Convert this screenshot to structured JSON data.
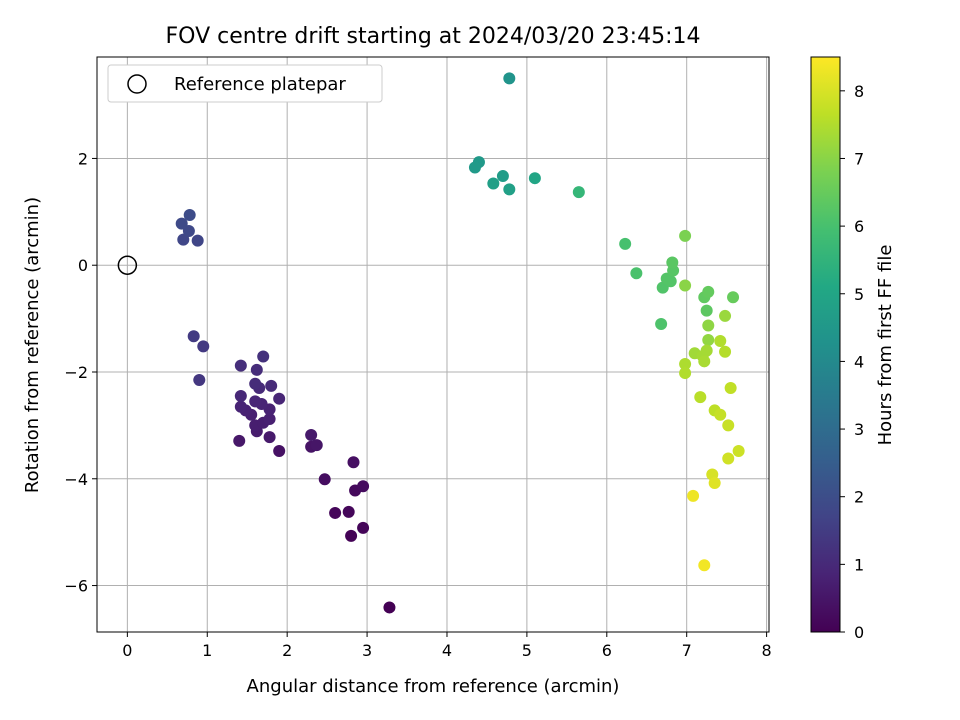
{
  "chart_data": {
    "type": "scatter",
    "title": "FOV centre drift starting at 2024/03/20 23:45:14",
    "xlabel": "Angular distance from reference (arcmin)",
    "ylabel": "Rotation from reference (arcmin)",
    "xlim": [
      -0.38,
      8.03
    ],
    "ylim": [
      -6.87,
      3.9
    ],
    "xticks": [
      0,
      1,
      2,
      3,
      4,
      5,
      6,
      7,
      8
    ],
    "yticks": [
      -6,
      -4,
      -2,
      0,
      2
    ],
    "xtick_labels": [
      "0",
      "1",
      "2",
      "3",
      "4",
      "5",
      "6",
      "7",
      "8"
    ],
    "ytick_labels": [
      "−6",
      "−4",
      "−2",
      "0",
      "2"
    ],
    "grid": true,
    "legend": {
      "position": "top-left",
      "entries": [
        "Reference platepar"
      ]
    },
    "reference_point": {
      "x": 0,
      "y": 0
    },
    "colorbar": {
      "label": "Hours from first FF file",
      "range": [
        0,
        8.5
      ],
      "ticks": [
        0,
        1,
        2,
        3,
        4,
        5,
        6,
        7,
        8
      ],
      "tick_labels": [
        "0",
        "1",
        "2",
        "3",
        "4",
        "5",
        "6",
        "7",
        "8"
      ],
      "colormap": "viridis"
    },
    "points": [
      {
        "x": 3.28,
        "y": -6.41,
        "c": 0.0
      },
      {
        "x": 2.8,
        "y": -5.07,
        "c": 0.05
      },
      {
        "x": 2.95,
        "y": -4.92,
        "c": 0.1
      },
      {
        "x": 2.6,
        "y": -4.64,
        "c": 0.12
      },
      {
        "x": 2.77,
        "y": -4.62,
        "c": 0.15
      },
      {
        "x": 2.85,
        "y": -4.22,
        "c": 0.2
      },
      {
        "x": 2.95,
        "y": -4.14,
        "c": 0.25
      },
      {
        "x": 2.47,
        "y": -4.01,
        "c": 0.3
      },
      {
        "x": 2.83,
        "y": -3.69,
        "c": 0.35
      },
      {
        "x": 1.9,
        "y": -3.48,
        "c": 0.4
      },
      {
        "x": 2.3,
        "y": -3.4,
        "c": 0.45
      },
      {
        "x": 2.37,
        "y": -3.37,
        "c": 0.5
      },
      {
        "x": 1.4,
        "y": -3.29,
        "c": 0.55
      },
      {
        "x": 1.78,
        "y": -3.22,
        "c": 0.6
      },
      {
        "x": 2.3,
        "y": -3.18,
        "c": 0.6
      },
      {
        "x": 1.62,
        "y": -3.11,
        "c": 0.65
      },
      {
        "x": 1.6,
        "y": -3.0,
        "c": 0.7
      },
      {
        "x": 1.7,
        "y": -2.95,
        "c": 0.7
      },
      {
        "x": 1.78,
        "y": -2.88,
        "c": 0.75
      },
      {
        "x": 1.55,
        "y": -2.8,
        "c": 0.75
      },
      {
        "x": 1.48,
        "y": -2.72,
        "c": 0.8
      },
      {
        "x": 1.78,
        "y": -2.7,
        "c": 0.8
      },
      {
        "x": 1.42,
        "y": -2.65,
        "c": 0.85
      },
      {
        "x": 1.68,
        "y": -2.6,
        "c": 0.85
      },
      {
        "x": 1.6,
        "y": -2.55,
        "c": 0.9
      },
      {
        "x": 1.9,
        "y": -2.5,
        "c": 0.9
      },
      {
        "x": 1.42,
        "y": -2.45,
        "c": 0.95
      },
      {
        "x": 1.65,
        "y": -2.3,
        "c": 1.0
      },
      {
        "x": 1.8,
        "y": -2.26,
        "c": 1.0
      },
      {
        "x": 1.6,
        "y": -2.22,
        "c": 1.05
      },
      {
        "x": 1.62,
        "y": -1.96,
        "c": 1.1
      },
      {
        "x": 1.42,
        "y": -1.88,
        "c": 1.15
      },
      {
        "x": 1.7,
        "y": -1.71,
        "c": 1.2
      },
      {
        "x": 0.9,
        "y": -2.15,
        "c": 1.35
      },
      {
        "x": 0.95,
        "y": -1.52,
        "c": 1.4
      },
      {
        "x": 0.83,
        "y": -1.33,
        "c": 1.45
      },
      {
        "x": 0.88,
        "y": 0.46,
        "c": 1.75
      },
      {
        "x": 0.7,
        "y": 0.48,
        "c": 1.8
      },
      {
        "x": 0.77,
        "y": 0.64,
        "c": 1.85
      },
      {
        "x": 0.68,
        "y": 0.78,
        "c": 1.9
      },
      {
        "x": 0.78,
        "y": 0.94,
        "c": 1.95
      },
      {
        "x": 4.78,
        "y": 3.5,
        "c": 4.35
      },
      {
        "x": 4.4,
        "y": 1.93,
        "c": 4.55
      },
      {
        "x": 4.35,
        "y": 1.83,
        "c": 4.6
      },
      {
        "x": 4.7,
        "y": 1.67,
        "c": 4.65
      },
      {
        "x": 4.58,
        "y": 1.53,
        "c": 4.75
      },
      {
        "x": 4.78,
        "y": 1.42,
        "c": 4.8
      },
      {
        "x": 5.1,
        "y": 1.63,
        "c": 5.0
      },
      {
        "x": 5.65,
        "y": 1.37,
        "c": 5.6
      },
      {
        "x": 6.23,
        "y": 0.4,
        "c": 6.0
      },
      {
        "x": 6.37,
        "y": -0.15,
        "c": 6.05
      },
      {
        "x": 6.68,
        "y": -1.1,
        "c": 6.1
      },
      {
        "x": 6.7,
        "y": -0.42,
        "c": 6.15
      },
      {
        "x": 6.75,
        "y": -0.25,
        "c": 6.2
      },
      {
        "x": 6.8,
        "y": -0.3,
        "c": 6.2
      },
      {
        "x": 6.83,
        "y": -0.1,
        "c": 6.25
      },
      {
        "x": 6.82,
        "y": 0.05,
        "c": 6.3
      },
      {
        "x": 7.25,
        "y": -0.85,
        "c": 6.35
      },
      {
        "x": 7.22,
        "y": -0.6,
        "c": 6.4
      },
      {
        "x": 7.27,
        "y": -0.5,
        "c": 6.45
      },
      {
        "x": 7.58,
        "y": -0.6,
        "c": 6.5
      },
      {
        "x": 6.98,
        "y": 0.55,
        "c": 6.8
      },
      {
        "x": 6.98,
        "y": -0.38,
        "c": 7.0
      },
      {
        "x": 7.27,
        "y": -1.13,
        "c": 7.05
      },
      {
        "x": 7.27,
        "y": -1.4,
        "c": 7.1
      },
      {
        "x": 7.48,
        "y": -0.95,
        "c": 7.2
      },
      {
        "x": 7.1,
        "y": -1.65,
        "c": 7.3
      },
      {
        "x": 7.2,
        "y": -1.7,
        "c": 7.35
      },
      {
        "x": 7.25,
        "y": -1.6,
        "c": 7.35
      },
      {
        "x": 7.22,
        "y": -1.8,
        "c": 7.4
      },
      {
        "x": 6.98,
        "y": -1.85,
        "c": 7.45
      },
      {
        "x": 6.98,
        "y": -2.02,
        "c": 7.5
      },
      {
        "x": 7.42,
        "y": -1.42,
        "c": 7.5
      },
      {
        "x": 7.48,
        "y": -1.62,
        "c": 7.55
      },
      {
        "x": 7.17,
        "y": -2.47,
        "c": 7.6
      },
      {
        "x": 7.35,
        "y": -2.72,
        "c": 7.65
      },
      {
        "x": 7.55,
        "y": -2.3,
        "c": 7.7
      },
      {
        "x": 7.42,
        "y": -2.8,
        "c": 7.75
      },
      {
        "x": 7.52,
        "y": -3.0,
        "c": 7.8
      },
      {
        "x": 7.65,
        "y": -3.48,
        "c": 7.85
      },
      {
        "x": 7.52,
        "y": -3.62,
        "c": 7.9
      },
      {
        "x": 7.32,
        "y": -3.92,
        "c": 8.0
      },
      {
        "x": 7.35,
        "y": -4.08,
        "c": 8.1
      },
      {
        "x": 7.08,
        "y": -4.32,
        "c": 8.3
      },
      {
        "x": 7.22,
        "y": -5.62,
        "c": 8.35
      }
    ]
  }
}
